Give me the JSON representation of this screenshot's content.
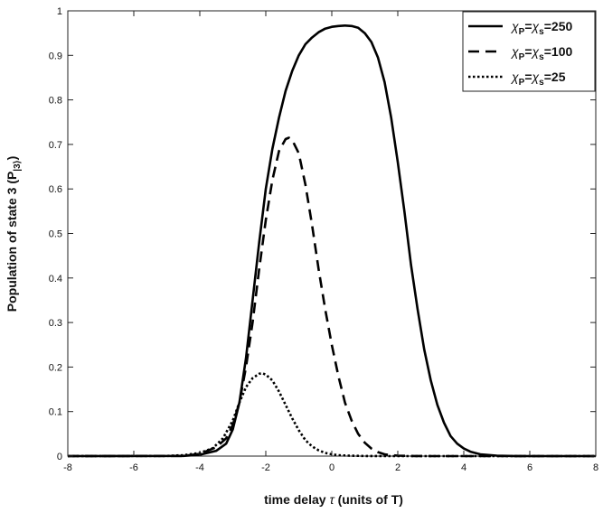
{
  "chart_data": {
    "type": "line",
    "title": "",
    "xlabel": "time delay τ (units of T)",
    "ylabel": "Population of state 3 (P|3⟩)",
    "xlim": [
      -8,
      8
    ],
    "ylim": [
      0,
      1
    ],
    "xticks": [
      "-8",
      "-6",
      "-4",
      "-2",
      "0",
      "2",
      "4",
      "6",
      "8"
    ],
    "yticks": [
      "0",
      "0.1",
      "0.2",
      "0.3",
      "0.4",
      "0.5",
      "0.6",
      "0.7",
      "0.8",
      "0.9",
      "1"
    ],
    "grid": false,
    "legend_position": "top-right",
    "series": [
      {
        "name": "χP=χs=250",
        "style": "solid",
        "color": "#000000",
        "x": [
          -8,
          -4.5,
          -4,
          -3.5,
          -3.2,
          -3.0,
          -2.8,
          -2.6,
          -2.4,
          -2.2,
          -2.0,
          -1.8,
          -1.6,
          -1.4,
          -1.2,
          -1.0,
          -0.8,
          -0.6,
          -0.4,
          -0.2,
          0.0,
          0.2,
          0.4,
          0.6,
          0.8,
          1.0,
          1.2,
          1.4,
          1.6,
          1.8,
          2.0,
          2.2,
          2.4,
          2.6,
          2.8,
          3.0,
          3.2,
          3.4,
          3.6,
          3.8,
          4.0,
          4.2,
          4.5,
          5.0,
          5.5,
          6,
          8
        ],
        "y": [
          0,
          0.0005,
          0.003,
          0.012,
          0.028,
          0.06,
          0.12,
          0.22,
          0.35,
          0.48,
          0.6,
          0.69,
          0.76,
          0.82,
          0.865,
          0.9,
          0.925,
          0.94,
          0.952,
          0.96,
          0.964,
          0.966,
          0.967,
          0.966,
          0.962,
          0.95,
          0.93,
          0.895,
          0.84,
          0.76,
          0.66,
          0.55,
          0.43,
          0.33,
          0.24,
          0.17,
          0.115,
          0.075,
          0.045,
          0.028,
          0.017,
          0.01,
          0.004,
          0.001,
          0.0003,
          0,
          0
        ]
      },
      {
        "name": "χP=χs=100",
        "style": "dashed",
        "color": "#000000",
        "x": [
          -8,
          -4.5,
          -4.0,
          -3.5,
          -3.2,
          -3.0,
          -2.8,
          -2.6,
          -2.4,
          -2.2,
          -2.0,
          -1.8,
          -1.6,
          -1.4,
          -1.3,
          -1.2,
          -1.0,
          -0.8,
          -0.6,
          -0.4,
          -0.2,
          0.0,
          0.2,
          0.4,
          0.6,
          0.8,
          1.0,
          1.2,
          1.4,
          1.6,
          1.8,
          2.0,
          2.5,
          3.0,
          8
        ],
        "y": [
          0,
          0.0005,
          0.005,
          0.02,
          0.04,
          0.07,
          0.12,
          0.2,
          0.3,
          0.42,
          0.53,
          0.62,
          0.685,
          0.712,
          0.715,
          0.71,
          0.68,
          0.61,
          0.52,
          0.42,
          0.33,
          0.25,
          0.18,
          0.12,
          0.08,
          0.05,
          0.03,
          0.017,
          0.009,
          0.004,
          0.002,
          0.001,
          0.0003,
          0,
          0
        ]
      },
      {
        "name": "χP=χs=25",
        "style": "dotted",
        "color": "#000000",
        "x": [
          -8,
          -5.0,
          -4.5,
          -4.0,
          -3.6,
          -3.3,
          -3.0,
          -2.8,
          -2.6,
          -2.4,
          -2.2,
          -2.1,
          -2.0,
          -1.8,
          -1.6,
          -1.4,
          -1.2,
          -1.0,
          -0.8,
          -0.6,
          -0.4,
          -0.2,
          0.0,
          0.2,
          0.5,
          1.0,
          1.5,
          2.0,
          8
        ],
        "y": [
          0,
          0.0005,
          0.002,
          0.007,
          0.018,
          0.04,
          0.08,
          0.12,
          0.155,
          0.175,
          0.185,
          0.186,
          0.183,
          0.17,
          0.145,
          0.115,
          0.085,
          0.058,
          0.036,
          0.022,
          0.013,
          0.007,
          0.004,
          0.002,
          0.001,
          0.0003,
          0.0001,
          0,
          0
        ]
      }
    ]
  }
}
